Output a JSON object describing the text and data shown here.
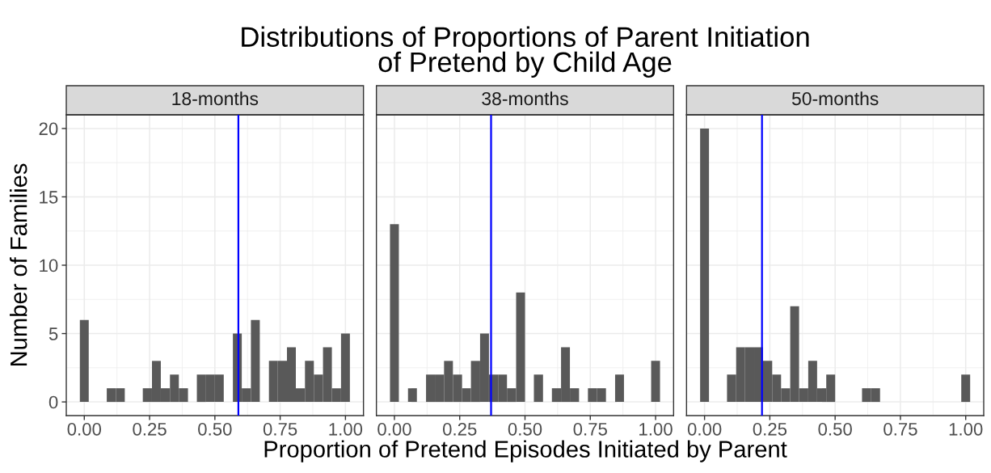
{
  "chart_data": [
    {
      "type": "histogram",
      "subtitle": "18-months",
      "ylabel": "Number of Families",
      "color": "#595959",
      "bins": [
        -0.017,
        0.017,
        0.052,
        0.086,
        0.121,
        0.155,
        0.19,
        0.224,
        0.259,
        0.293,
        0.328,
        0.362,
        0.397,
        0.431,
        0.466,
        0.5,
        0.534,
        0.569,
        0.603,
        0.638,
        0.672,
        0.707,
        0.741,
        0.776,
        0.81,
        0.845,
        0.879,
        0.914,
        0.948,
        0.983,
        1.017
      ],
      "values": [
        6,
        0,
        0,
        1,
        1,
        0,
        0,
        1,
        3,
        1,
        2,
        1,
        0,
        2,
        2,
        2,
        0,
        5,
        1,
        6,
        0,
        3,
        3,
        4,
        1,
        3,
        2,
        4,
        1,
        5
      ],
      "xlim": [
        -0.069,
        1.069
      ],
      "ylim": [
        -1,
        21
      ],
      "xticks": [
        {
          "value": 0,
          "label": "0.00"
        },
        {
          "value": 0.25,
          "label": "0.25"
        },
        {
          "value": 0.5,
          "label": "0.50"
        },
        {
          "value": 0.75,
          "label": "0.75"
        },
        {
          "value": 1,
          "label": "1.00"
        }
      ],
      "yticks": [
        0,
        5,
        10,
        15,
        20
      ],
      "ref_lines": [
        {
          "axis": "x",
          "value": 0.59,
          "color": "#0000ff"
        }
      ],
      "grid": true
    },
    {
      "type": "histogram",
      "title": "Distributions of Proportions of Parent Initiation\nof Pretend by Child Age",
      "subtitle": "38-months",
      "xlabel": "Proportion of Pretend Episodes Initiated by Parent",
      "color": "#595959",
      "bins": [
        -0.017,
        0.017,
        0.052,
        0.086,
        0.121,
        0.155,
        0.19,
        0.224,
        0.259,
        0.293,
        0.328,
        0.362,
        0.397,
        0.431,
        0.466,
        0.5,
        0.534,
        0.569,
        0.603,
        0.638,
        0.672,
        0.707,
        0.741,
        0.776,
        0.81,
        0.845,
        0.879,
        0.914,
        0.948,
        0.983,
        1.017
      ],
      "values": [
        13,
        0,
        1,
        0,
        2,
        2,
        3,
        2,
        1,
        3,
        5,
        2,
        2,
        1,
        8,
        0,
        2,
        0,
        1,
        4,
        1,
        0,
        1,
        1,
        0,
        2,
        0,
        0,
        0,
        3
      ],
      "xlim": [
        -0.069,
        1.069
      ],
      "ylim": [
        -1,
        21
      ],
      "xticks": [
        {
          "value": 0,
          "label": "0.00"
        },
        {
          "value": 0.25,
          "label": "0.25"
        },
        {
          "value": 0.5,
          "label": "0.50"
        },
        {
          "value": 0.75,
          "label": "0.75"
        },
        {
          "value": 1,
          "label": "1.00"
        }
      ],
      "yticks": [
        0,
        5,
        10,
        15,
        20
      ],
      "tick_labels": "x",
      "ref_lines": [
        {
          "axis": "x",
          "value": 0.37,
          "color": "#0000ff"
        }
      ],
      "grid": true
    },
    {
      "type": "histogram",
      "subtitle": "50-months",
      "color": "#595959",
      "bins": [
        -0.017,
        0.017,
        0.052,
        0.086,
        0.121,
        0.155,
        0.19,
        0.224,
        0.259,
        0.293,
        0.328,
        0.362,
        0.397,
        0.431,
        0.466,
        0.5,
        0.534,
        0.569,
        0.603,
        0.638,
        0.672,
        0.707,
        0.741,
        0.776,
        0.81,
        0.845,
        0.879,
        0.914,
        0.948,
        0.983,
        1.017
      ],
      "values": [
        20,
        0,
        0,
        2,
        4,
        4,
        4,
        3,
        2,
        1,
        7,
        1,
        3,
        1,
        2,
        0,
        0,
        0,
        1,
        1,
        0,
        0,
        0,
        0,
        0,
        0,
        0,
        0,
        0,
        2
      ],
      "xlim": [
        -0.069,
        1.069
      ],
      "ylim": [
        -1,
        21
      ],
      "xticks": [
        {
          "value": 0,
          "label": "0.00"
        },
        {
          "value": 0.25,
          "label": "0.25"
        },
        {
          "value": 0.5,
          "label": "0.50"
        },
        {
          "value": 0.75,
          "label": "0.75"
        },
        {
          "value": 1,
          "label": "1.00"
        }
      ],
      "yticks": [
        0,
        5,
        10,
        15,
        20
      ],
      "tick_labels": "x",
      "ref_lines": [
        {
          "axis": "x",
          "value": 0.22,
          "color": "#0000ff"
        }
      ],
      "grid": true
    }
  ]
}
